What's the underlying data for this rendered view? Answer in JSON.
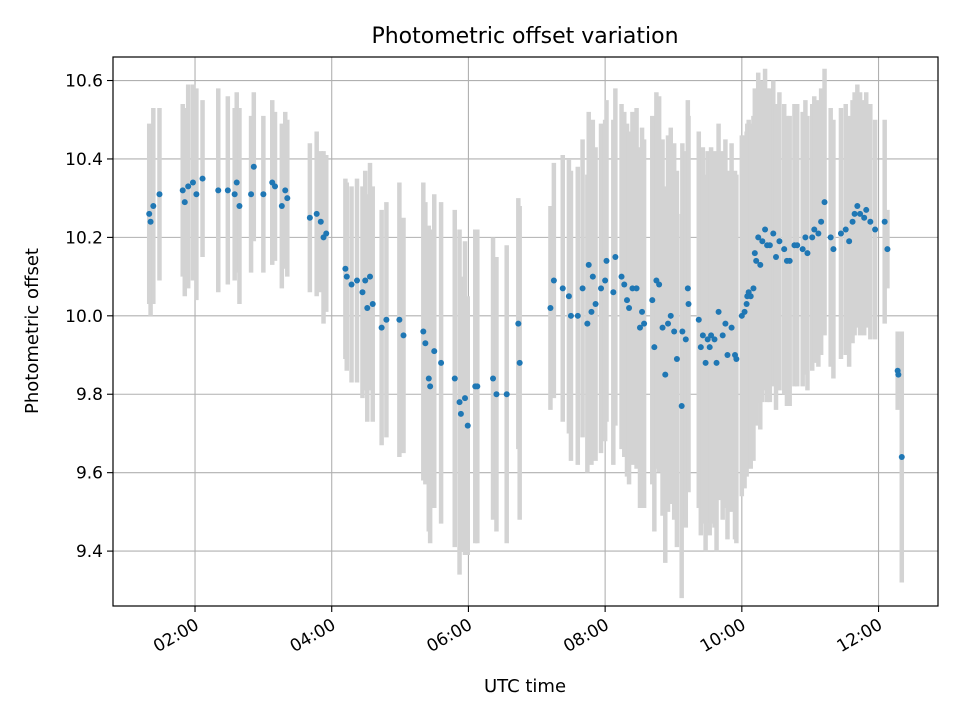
{
  "chart_data": {
    "type": "scatter",
    "title": "Photometric offset variation",
    "xlabel": "UTC time",
    "ylabel": "Photometric offset",
    "x_axis": "time (decimal hours UTC)",
    "xlim": [
      0.8,
      12.87
    ],
    "ylim": [
      9.26,
      10.66
    ],
    "xticks": [
      {
        "value": 2,
        "label": "02:00"
      },
      {
        "value": 4,
        "label": "04:00"
      },
      {
        "value": 6,
        "label": "06:00"
      },
      {
        "value": 8,
        "label": "08:00"
      },
      {
        "value": 10,
        "label": "10:00"
      },
      {
        "value": 12,
        "label": "12:00"
      }
    ],
    "yticks": [
      {
        "value": 9.4,
        "label": "9.4"
      },
      {
        "value": 9.6,
        "label": "9.6"
      },
      {
        "value": 9.8,
        "label": "9.8"
      },
      {
        "value": 10.0,
        "label": "10.0"
      },
      {
        "value": 10.2,
        "label": "10.2"
      },
      {
        "value": 10.4,
        "label": "10.4"
      },
      {
        "value": 10.6,
        "label": "10.6"
      }
    ],
    "grid": true,
    "colors": {
      "points": "#1f77b4",
      "errorbars": "#d3d3d3",
      "grid": "#b0b0b0"
    },
    "series": [
      {
        "style": "markers with vertical error bars",
        "points": [
          [
            1.33,
            10.26,
            0.23
          ],
          [
            1.35,
            10.24,
            0.24
          ],
          [
            1.39,
            10.28,
            0.25
          ],
          [
            1.48,
            10.31,
            0.22
          ],
          [
            1.82,
            10.32,
            0.22
          ],
          [
            1.85,
            10.29,
            0.24
          ],
          [
            1.9,
            10.33,
            0.26
          ],
          [
            1.97,
            10.34,
            0.25
          ],
          [
            2.02,
            10.31,
            0.27
          ],
          [
            2.11,
            10.35,
            0.2
          ],
          [
            2.34,
            10.32,
            0.26
          ],
          [
            2.48,
            10.32,
            0.24
          ],
          [
            2.58,
            10.31,
            0.22
          ],
          [
            2.61,
            10.34,
            0.23
          ],
          [
            2.65,
            10.28,
            0.25
          ],
          [
            2.82,
            10.31,
            0.2
          ],
          [
            2.86,
            10.38,
            0.19
          ],
          [
            3.0,
            10.31,
            0.2
          ],
          [
            3.13,
            10.34,
            0.21
          ],
          [
            3.17,
            10.33,
            0.19
          ],
          [
            3.27,
            10.28,
            0.21
          ],
          [
            3.32,
            10.32,
            0.2
          ],
          [
            3.35,
            10.3,
            0.2
          ],
          [
            3.68,
            10.25,
            0.19
          ],
          [
            3.78,
            10.26,
            0.21
          ],
          [
            3.84,
            10.24,
            0.18
          ],
          [
            3.88,
            10.2,
            0.22
          ],
          [
            3.92,
            10.21,
            0.2
          ],
          [
            4.2,
            10.12,
            0.23
          ],
          [
            4.22,
            10.1,
            0.24
          ],
          [
            4.29,
            10.08,
            0.25
          ],
          [
            4.37,
            10.09,
            0.26
          ],
          [
            4.45,
            10.06,
            0.27
          ],
          [
            4.49,
            10.09,
            0.28
          ],
          [
            4.52,
            10.02,
            0.29
          ],
          [
            4.56,
            10.1,
            0.29
          ],
          [
            4.6,
            10.03,
            0.3
          ],
          [
            4.73,
            9.97,
            0.3
          ],
          [
            4.8,
            9.99,
            0.3
          ],
          [
            4.99,
            9.99,
            0.35
          ],
          [
            5.05,
            9.95,
            0.3
          ],
          [
            5.34,
            9.96,
            0.38
          ],
          [
            5.37,
            9.93,
            0.36
          ],
          [
            5.42,
            9.84,
            0.39
          ],
          [
            5.44,
            9.82,
            0.4
          ],
          [
            5.5,
            9.91,
            0.4
          ],
          [
            5.6,
            9.88,
            0.41
          ],
          [
            5.8,
            9.84,
            0.43
          ],
          [
            5.87,
            9.78,
            0.44
          ],
          [
            5.89,
            9.75,
            0.35
          ],
          [
            5.95,
            9.79,
            0.4
          ],
          [
            5.99,
            9.72,
            0.33
          ],
          [
            6.1,
            9.82,
            0.4
          ],
          [
            6.13,
            9.82,
            0.4
          ],
          [
            6.36,
            9.84,
            0.36
          ],
          [
            6.41,
            9.8,
            0.35
          ],
          [
            6.56,
            9.8,
            0.38
          ],
          [
            6.73,
            9.98,
            0.32
          ],
          [
            6.75,
            9.88,
            0.4
          ],
          [
            7.2,
            10.02,
            0.26
          ],
          [
            7.25,
            10.09,
            0.3
          ],
          [
            7.38,
            10.07,
            0.34
          ],
          [
            7.47,
            10.05,
            0.35
          ],
          [
            7.5,
            10.0,
            0.37
          ],
          [
            7.6,
            10.0,
            0.38
          ],
          [
            7.67,
            10.07,
            0.38
          ],
          [
            7.74,
            9.98,
            0.38
          ],
          [
            7.76,
            10.13,
            0.39
          ],
          [
            7.8,
            10.01,
            0.39
          ],
          [
            7.82,
            10.1,
            0.4
          ],
          [
            7.86,
            10.03,
            0.4
          ],
          [
            7.94,
            10.07,
            0.42
          ],
          [
            8.0,
            10.09,
            0.41
          ],
          [
            8.02,
            10.14,
            0.41
          ],
          [
            8.12,
            10.06,
            0.44
          ],
          [
            8.15,
            10.15,
            0.43
          ],
          [
            8.24,
            10.1,
            0.44
          ],
          [
            8.28,
            10.08,
            0.44
          ],
          [
            8.32,
            10.04,
            0.45
          ],
          [
            8.35,
            10.02,
            0.45
          ],
          [
            8.4,
            10.07,
            0.45
          ],
          [
            8.46,
            10.07,
            0.46
          ],
          [
            8.51,
            9.97,
            0.46
          ],
          [
            8.54,
            10.01,
            0.47
          ],
          [
            8.57,
            9.98,
            0.47
          ],
          [
            8.69,
            10.04,
            0.47
          ],
          [
            8.72,
            9.92,
            0.47
          ],
          [
            8.75,
            10.09,
            0.48
          ],
          [
            8.79,
            10.08,
            0.48
          ],
          [
            8.84,
            9.97,
            0.48
          ],
          [
            8.88,
            9.85,
            0.48
          ],
          [
            8.92,
            9.98,
            0.48
          ],
          [
            8.96,
            10.0,
            0.48
          ],
          [
            9.01,
            9.96,
            0.48
          ],
          [
            9.05,
            9.89,
            0.48
          ],
          [
            9.12,
            9.77,
            0.49
          ],
          [
            9.13,
            9.96,
            0.48
          ],
          [
            9.18,
            9.94,
            0.48
          ],
          [
            9.21,
            10.07,
            0.48
          ],
          [
            9.22,
            10.03,
            0.48
          ],
          [
            9.37,
            9.99,
            0.48
          ],
          [
            9.4,
            9.92,
            0.48
          ],
          [
            9.43,
            9.95,
            0.48
          ],
          [
            9.47,
            9.88,
            0.48
          ],
          [
            9.5,
            9.94,
            0.48
          ],
          [
            9.53,
            9.92,
            0.48
          ],
          [
            9.55,
            9.95,
            0.48
          ],
          [
            9.6,
            9.94,
            0.48
          ],
          [
            9.63,
            9.88,
            0.48
          ],
          [
            9.66,
            10.01,
            0.48
          ],
          [
            9.72,
            9.95,
            0.47
          ],
          [
            9.76,
            9.98,
            0.47
          ],
          [
            9.79,
            9.9,
            0.47
          ],
          [
            9.85,
            9.97,
            0.47
          ],
          [
            9.9,
            9.9,
            0.47
          ],
          [
            9.92,
            9.89,
            0.47
          ],
          [
            10.0,
            10.0,
            0.46
          ],
          [
            10.04,
            10.01,
            0.45
          ],
          [
            10.07,
            10.03,
            0.44
          ],
          [
            10.08,
            10.05,
            0.44
          ],
          [
            10.1,
            10.06,
            0.44
          ],
          [
            10.13,
            10.05,
            0.44
          ],
          [
            10.17,
            10.07,
            0.44
          ],
          [
            10.19,
            10.16,
            0.42
          ],
          [
            10.21,
            10.14,
            0.42
          ],
          [
            10.24,
            10.2,
            0.42
          ],
          [
            10.27,
            10.13,
            0.42
          ],
          [
            10.3,
            10.19,
            0.41
          ],
          [
            10.34,
            10.22,
            0.41
          ],
          [
            10.37,
            10.18,
            0.4
          ],
          [
            10.41,
            10.18,
            0.4
          ],
          [
            10.46,
            10.21,
            0.39
          ],
          [
            10.5,
            10.15,
            0.39
          ],
          [
            10.55,
            10.19,
            0.38
          ],
          [
            10.62,
            10.17,
            0.37
          ],
          [
            10.66,
            10.14,
            0.37
          ],
          [
            10.7,
            10.14,
            0.37
          ],
          [
            10.77,
            10.18,
            0.36
          ],
          [
            10.81,
            10.18,
            0.36
          ],
          [
            10.89,
            10.17,
            0.35
          ],
          [
            10.93,
            10.2,
            0.35
          ],
          [
            10.96,
            10.16,
            0.35
          ],
          [
            11.03,
            10.2,
            0.34
          ],
          [
            11.06,
            10.22,
            0.34
          ],
          [
            11.12,
            10.21,
            0.34
          ],
          [
            11.16,
            10.24,
            0.34
          ],
          [
            11.21,
            10.29,
            0.34
          ],
          [
            11.3,
            10.2,
            0.33
          ],
          [
            11.34,
            10.17,
            0.33
          ],
          [
            11.45,
            10.21,
            0.32
          ],
          [
            11.52,
            10.22,
            0.32
          ],
          [
            11.57,
            10.19,
            0.32
          ],
          [
            11.62,
            10.24,
            0.31
          ],
          [
            11.65,
            10.26,
            0.31
          ],
          [
            11.69,
            10.28,
            0.31
          ],
          [
            11.73,
            10.26,
            0.31
          ],
          [
            11.79,
            10.25,
            0.3
          ],
          [
            11.82,
            10.27,
            0.3
          ],
          [
            11.88,
            10.24,
            0.3
          ],
          [
            11.95,
            10.22,
            0.28
          ],
          [
            12.09,
            10.24,
            0.26
          ],
          [
            12.13,
            10.17,
            0.1
          ],
          [
            12.28,
            9.86,
            0.1
          ],
          [
            12.29,
            9.85,
            0.06
          ],
          [
            12.34,
            9.64,
            0.32
          ]
        ]
      }
    ]
  }
}
